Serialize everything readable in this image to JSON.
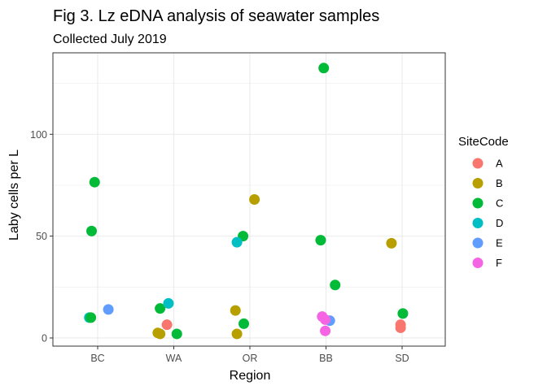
{
  "chart_data": {
    "type": "scatter",
    "title": "Fig 3. Lz eDNA analysis of seawater samples",
    "subtitle": "Collected July 2019",
    "xlabel": "Region",
    "ylabel": "Laby cells per L",
    "categories": [
      "BC",
      "WA",
      "OR",
      "BB",
      "SD"
    ],
    "yticks": [
      0,
      50,
      100
    ],
    "ylim": [
      -4,
      140
    ],
    "grid": true,
    "legend": {
      "title": "SiteCode",
      "position": "right",
      "entries": [
        {
          "name": "A",
          "color": "#F8766D"
        },
        {
          "name": "B",
          "color": "#B79F00"
        },
        {
          "name": "C",
          "color": "#00BA38"
        },
        {
          "name": "D",
          "color": "#00BFC4"
        },
        {
          "name": "E",
          "color": "#619CFF"
        },
        {
          "name": "F",
          "color": "#F564E3"
        }
      ]
    },
    "points": [
      {
        "region": "BC",
        "site": "C",
        "y": 76.5,
        "jitter": -0.04
      },
      {
        "region": "BC",
        "site": "C",
        "y": 52.5,
        "jitter": -0.08
      },
      {
        "region": "BC",
        "site": "D",
        "y": 10.0,
        "jitter": -0.11
      },
      {
        "region": "BC",
        "site": "C",
        "y": 10.0,
        "jitter": -0.09
      },
      {
        "region": "BC",
        "site": "E",
        "y": 14.0,
        "jitter": 0.14
      },
      {
        "region": "WA",
        "site": "C",
        "y": 14.5,
        "jitter": -0.18
      },
      {
        "region": "WA",
        "site": "D",
        "y": 17.0,
        "jitter": -0.07
      },
      {
        "region": "WA",
        "site": "A",
        "y": 6.5,
        "jitter": -0.09
      },
      {
        "region": "WA",
        "site": "B",
        "y": 2.5,
        "jitter": -0.21
      },
      {
        "region": "WA",
        "site": "B",
        "y": 2.0,
        "jitter": -0.18
      },
      {
        "region": "WA",
        "site": "C",
        "y": 2.0,
        "jitter": 0.04
      },
      {
        "region": "OR",
        "site": "B",
        "y": 68.0,
        "jitter": 0.06
      },
      {
        "region": "OR",
        "site": "C",
        "y": 50.0,
        "jitter": -0.09
      },
      {
        "region": "OR",
        "site": "D",
        "y": 47.0,
        "jitter": -0.17
      },
      {
        "region": "OR",
        "site": "B",
        "y": 13.5,
        "jitter": -0.19
      },
      {
        "region": "OR",
        "site": "C",
        "y": 7.0,
        "jitter": -0.08
      },
      {
        "region": "OR",
        "site": "B",
        "y": 2.0,
        "jitter": -0.17
      },
      {
        "region": "BB",
        "site": "C",
        "y": 132.5,
        "jitter": -0.03
      },
      {
        "region": "BB",
        "site": "C",
        "y": 48.0,
        "jitter": -0.07
      },
      {
        "region": "BB",
        "site": "C",
        "y": 26.0,
        "jitter": 0.12
      },
      {
        "region": "BB",
        "site": "F",
        "y": 10.5,
        "jitter": -0.05
      },
      {
        "region": "BB",
        "site": "E",
        "y": 8.5,
        "jitter": 0.05
      },
      {
        "region": "BB",
        "site": "F",
        "y": 9.0,
        "jitter": -0.01
      },
      {
        "region": "BB",
        "site": "F",
        "y": 3.5,
        "jitter": -0.01
      },
      {
        "region": "SD",
        "site": "B",
        "y": 46.5,
        "jitter": -0.14
      },
      {
        "region": "SD",
        "site": "C",
        "y": 12.0,
        "jitter": 0.01
      },
      {
        "region": "SD",
        "site": "A",
        "y": 6.5,
        "jitter": -0.02
      },
      {
        "region": "SD",
        "site": "A",
        "y": 5.0,
        "jitter": -0.02
      }
    ]
  }
}
